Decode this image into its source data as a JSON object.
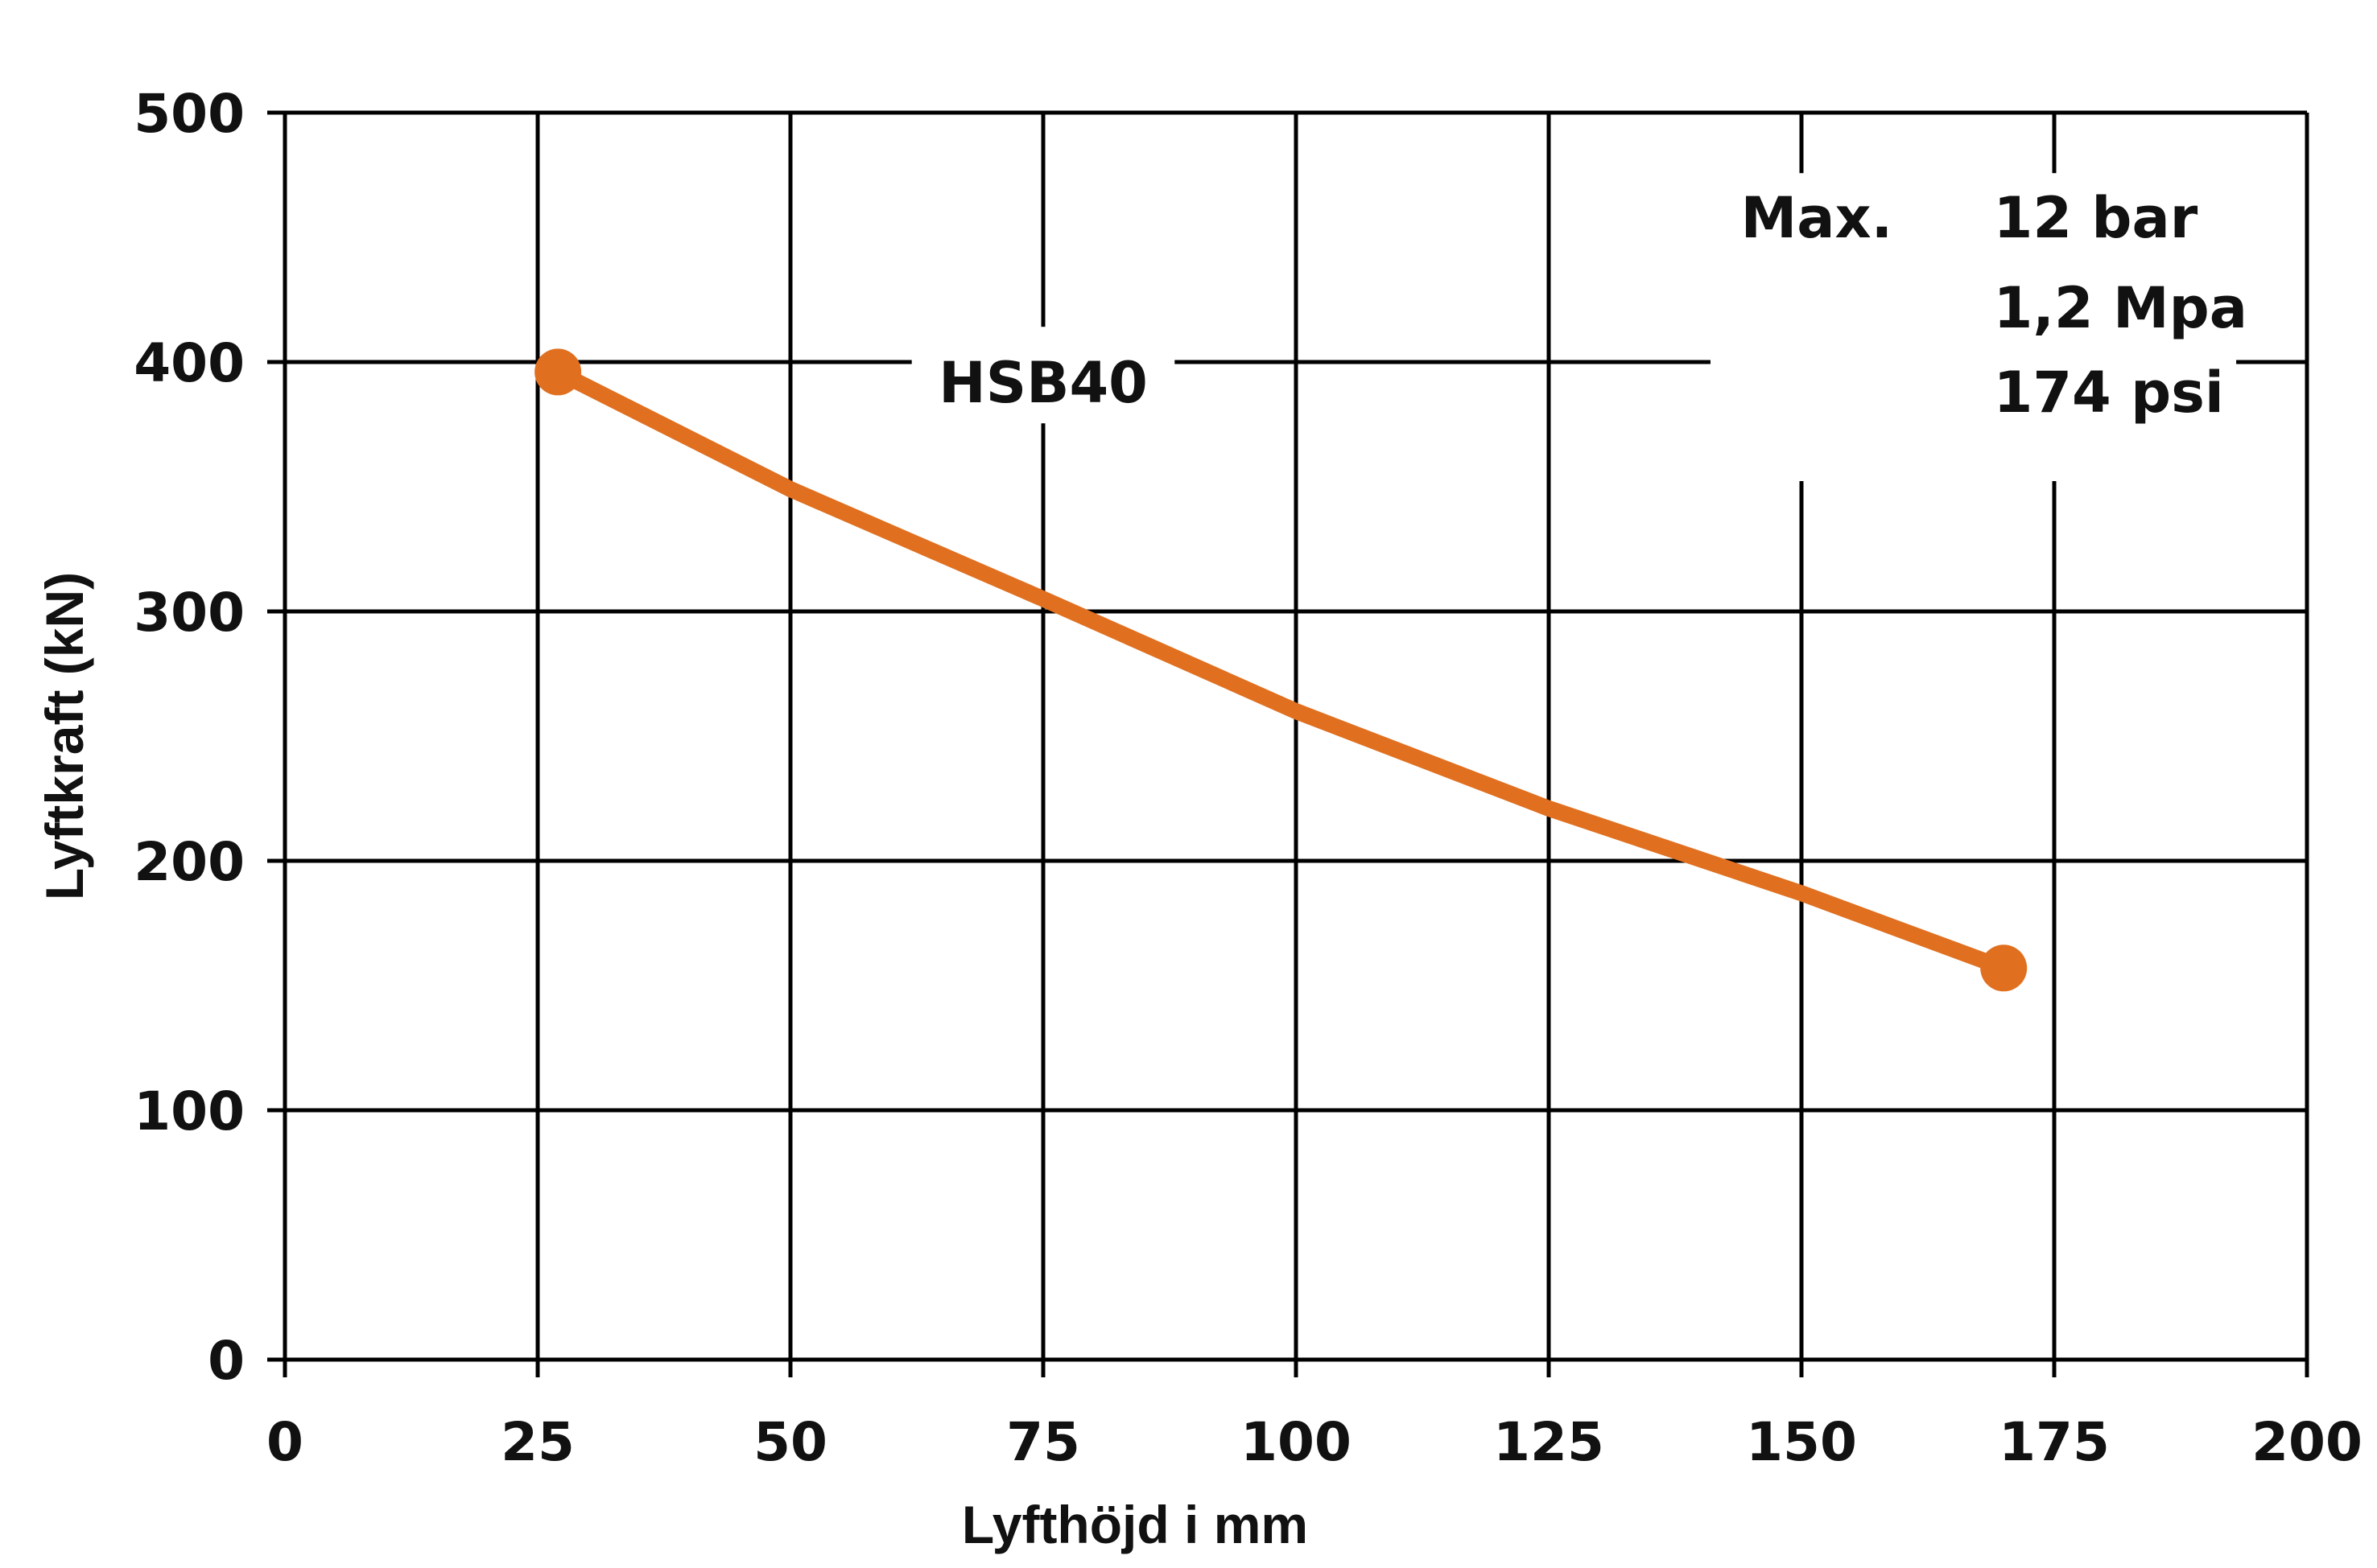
{
  "chart_data": {
    "type": "line",
    "xlabel": "Lyfthöjd i mm",
    "ylabel": "Lyftkraft (kN)",
    "xlim": [
      0,
      200
    ],
    "ylim": [
      0,
      500
    ],
    "xticks": [
      0,
      25,
      50,
      75,
      100,
      125,
      150,
      175,
      200
    ],
    "yticks": [
      0,
      100,
      200,
      300,
      400,
      500
    ],
    "grid": true,
    "series": [
      {
        "name": "HSB40",
        "color": "#e07020",
        "x": [
          27,
          50,
          75,
          100,
          125,
          150,
          170
        ],
        "y": [
          396,
          349,
          305,
          260,
          221,
          187,
          157
        ],
        "endpoint_markers": true
      }
    ],
    "annotations": {
      "max_label": "Max.",
      "pressure_lines": [
        "12 bar",
        "1,2 Mpa",
        "174 psi"
      ]
    }
  }
}
